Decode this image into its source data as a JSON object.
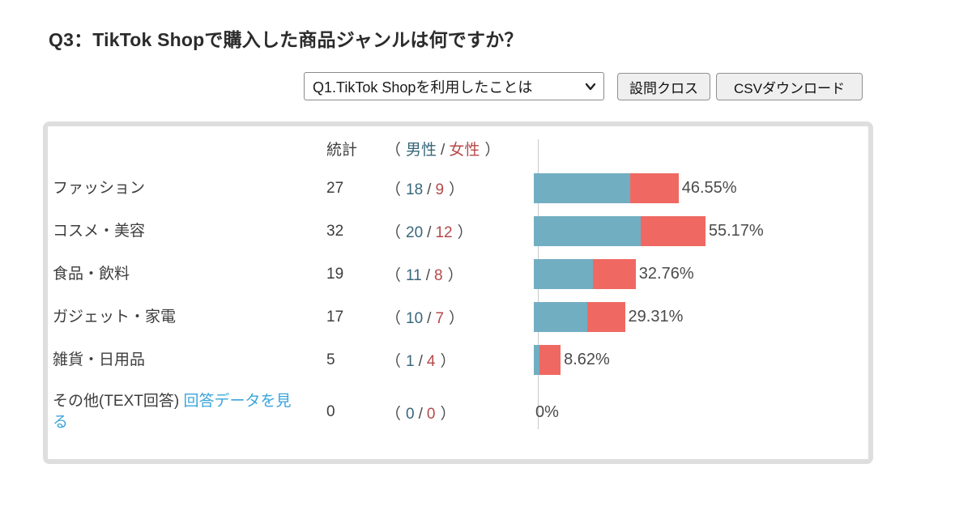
{
  "page": {
    "title": "Q3：TikTok Shopで購入した商品ジャンルは何ですか？"
  },
  "toolbar": {
    "cross_select_value": "Q1.TikTok Shopを利用したことは",
    "cross_button_label": "設問クロス",
    "csv_button_label": "CSVダウンロード"
  },
  "table": {
    "fmt": {
      "open": "（",
      "slash": "/",
      "close": "）"
    },
    "header": {
      "stat": "統計",
      "male": "男性",
      "female": "女性"
    },
    "rows": [
      {
        "label": "ファッション",
        "total": "27",
        "male": "18",
        "female": "9",
        "pct": "46.55%"
      },
      {
        "label": "コスメ・美容",
        "total": "32",
        "male": "20",
        "female": "12",
        "pct": "55.17%"
      },
      {
        "label": "食品・飲料",
        "total": "19",
        "male": "11",
        "female": "8",
        "pct": "32.76%"
      },
      {
        "label": "ガジェット・家電",
        "total": "17",
        "male": "10",
        "female": "7",
        "pct": "29.31%"
      },
      {
        "label": "雑貨・日用品",
        "total": "5",
        "male": "1",
        "female": "4",
        "pct": "8.62%"
      },
      {
        "label": "その他(TEXT回答)",
        "link": "回答データを見る",
        "total": "0",
        "male": "0",
        "female": "0",
        "pct": "0%"
      }
    ]
  },
  "chart_data": {
    "type": "bar",
    "orientation": "horizontal",
    "stacked": true,
    "title": "Q3：TikTok Shopで購入した商品ジャンルは何ですか？",
    "categories": [
      "ファッション",
      "コスメ・美容",
      "食品・飲料",
      "ガジェット・家電",
      "雑貨・日用品",
      "その他(TEXT回答)"
    ],
    "series": [
      {
        "name": "男性",
        "values": [
          18,
          20,
          11,
          10,
          1,
          0
        ]
      },
      {
        "name": "女性",
        "values": [
          9,
          12,
          8,
          7,
          4,
          0
        ]
      }
    ],
    "totals": [
      27,
      32,
      19,
      17,
      5,
      0
    ],
    "percent_values": [
      46.55,
      55.17,
      32.76,
      29.31,
      8.62,
      0
    ],
    "percent_labels": [
      "46.55%",
      "55.17%",
      "32.76%",
      "29.31%",
      "8.62%",
      "0%"
    ],
    "xlim": [
      0,
      100
    ],
    "grid": false,
    "legend_position": "table-header",
    "colors": {
      "male_bar": "#72aec2",
      "female_bar": "#ef6962",
      "male_text": "#38677a",
      "female_text": "#b5494a",
      "link": "#3ba5db"
    }
  }
}
